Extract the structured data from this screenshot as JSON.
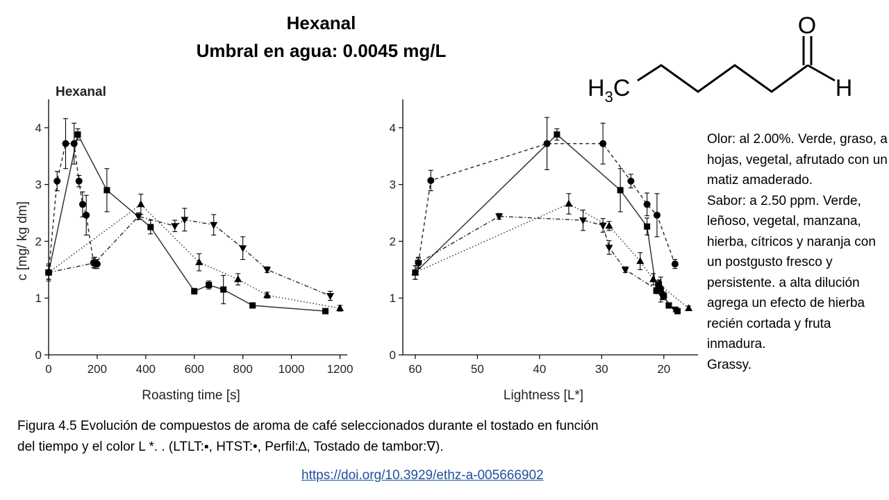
{
  "slide": {
    "title_line1": "Hexanal",
    "title_line2": "Umbral en agua: 0.0045 mg/L",
    "molecule": {
      "left_label": "H",
      "left_sub": "3",
      "left_tail": "C",
      "oxygen": "O",
      "right_label": "H"
    },
    "description": [
      "Olor: al 2.00%. Verde, graso, a hojas, vegetal, afrutado con un matiz amaderado.",
      "Sabor: a 2.50 ppm. Verde, leñoso, vegetal, manzana, hierba, cítricos y naranja con un postgusto fresco y persistente. a alta dilución agrega un efecto de hierba recién cortada y fruta inmadura.",
      "Grassy."
    ],
    "caption_line1": "Figura 4.5 Evolución de compuestos de aroma de café seleccionados durante el tostado en función",
    "caption_line2": "del tiempo y el color L *. . (LTLT:▪, HTST:•, Perfil:∆, Tostado de tambor:∇).",
    "link": "https://doi.org/10.3929/ethz-a-005666902"
  },
  "chart_data": [
    {
      "type": "line",
      "title": "Hexanal",
      "xlabel": "Roasting time [s]",
      "ylabel": "c [mg/ kg dm]",
      "xlim": [
        0,
        1230
      ],
      "ylim": [
        0,
        4.5
      ],
      "xticks": [
        0,
        200,
        400,
        600,
        800,
        1000,
        1200
      ],
      "yticks": [
        0,
        1,
        2,
        3,
        4
      ],
      "series": [
        {
          "name": "LTLT",
          "marker": "square",
          "dash": "solid",
          "x": [
            0,
            120,
            240,
            420,
            600,
            660,
            720,
            840,
            1140
          ],
          "y": [
            1.45,
            3.88,
            2.9,
            2.25,
            1.12,
            1.23,
            1.15,
            0.87,
            0.77
          ],
          "err": [
            0.12,
            0.1,
            0.38,
            0.12,
            0.05,
            0.07,
            0.25,
            0.04,
            0.04
          ]
        },
        {
          "name": "HTST",
          "marker": "circle",
          "dash": "dashed",
          "x": [
            0,
            35,
            70,
            105,
            125,
            140,
            155,
            185,
            200
          ],
          "y": [
            1.45,
            3.06,
            3.72,
            3.72,
            3.06,
            2.65,
            2.46,
            1.62,
            1.6
          ],
          "err": [
            0.15,
            0.17,
            0.44,
            0.36,
            0.1,
            0.22,
            0.35,
            0.08,
            0.08
          ]
        },
        {
          "name": "Perfil",
          "marker": "triangle-up",
          "dash": "dotted",
          "x": [
            0,
            380,
            620,
            780,
            900,
            1200
          ],
          "y": [
            1.45,
            2.65,
            1.63,
            1.33,
            1.05,
            0.82
          ],
          "err": [
            0.12,
            0.18,
            0.15,
            0.1,
            0.05,
            0.05
          ]
        },
        {
          "name": "Tostado de tambor",
          "marker": "triangle-down",
          "dash": "dashdot",
          "x": [
            0,
            190,
            370,
            520,
            560,
            680,
            800,
            900,
            1160
          ],
          "y": [
            1.45,
            1.62,
            2.44,
            2.27,
            2.38,
            2.29,
            1.88,
            1.5,
            1.04
          ],
          "err": [
            0.12,
            0.1,
            0.06,
            0.1,
            0.2,
            0.18,
            0.2,
            0.05,
            0.08
          ]
        }
      ]
    },
    {
      "type": "line",
      "title": "",
      "xlabel": "Lightness [L*]",
      "ylabel": "",
      "xlim": [
        62,
        14.5
      ],
      "ylim": [
        0,
        4.5
      ],
      "xticks": [
        60,
        50,
        40,
        30,
        20
      ],
      "yticks": [
        0,
        1,
        2,
        3,
        4
      ],
      "series": [
        {
          "name": "LTLT",
          "marker": "square",
          "dash": "solid",
          "x": [
            60,
            37.2,
            27,
            22.7,
            21.2,
            20.8,
            20.5,
            20,
            19.2,
            17.8
          ],
          "y": [
            1.45,
            3.88,
            2.9,
            2.26,
            1.13,
            1.24,
            1.15,
            1.04,
            0.87,
            0.77
          ],
          "err": [
            0.12,
            0.1,
            0.38,
            0.15,
            0.05,
            0.07,
            0.22,
            0.07,
            0.04,
            0.04
          ]
        },
        {
          "name": "HTST",
          "marker": "circle",
          "dash": "dashed",
          "x": [
            59.5,
            57.5,
            38.8,
            29.8,
            25.3,
            22.7,
            21.1,
            18.2
          ],
          "y": [
            1.62,
            3.07,
            3.72,
            3.72,
            3.06,
            2.65,
            2.46,
            1.6
          ],
          "err": [
            0.1,
            0.18,
            0.46,
            0.36,
            0.12,
            0.2,
            0.38,
            0.08
          ]
        },
        {
          "name": "Perfil",
          "marker": "triangle-up",
          "dash": "dotted",
          "x": [
            60,
            35.3,
            28.8,
            23.8,
            21.7,
            20.7,
            16
          ],
          "y": [
            1.45,
            2.66,
            2.27,
            1.65,
            1.33,
            1.24,
            0.82
          ],
          "err": [
            0.12,
            0.18,
            0.08,
            0.15,
            0.1,
            0.08,
            0.04
          ]
        },
        {
          "name": "Tostado de tambor",
          "marker": "triangle-down",
          "dash": "dashdot",
          "x": [
            59.5,
            46.5,
            33,
            29.8,
            28.8,
            26.2,
            21,
            20.3,
            18.2
          ],
          "y": [
            1.62,
            2.44,
            2.37,
            2.28,
            1.89,
            1.5,
            1.14,
            1.04,
            0.8
          ],
          "err": [
            0.08,
            0.05,
            0.18,
            0.12,
            0.12,
            0.05,
            0.06,
            0.06,
            0.04
          ]
        }
      ]
    }
  ]
}
